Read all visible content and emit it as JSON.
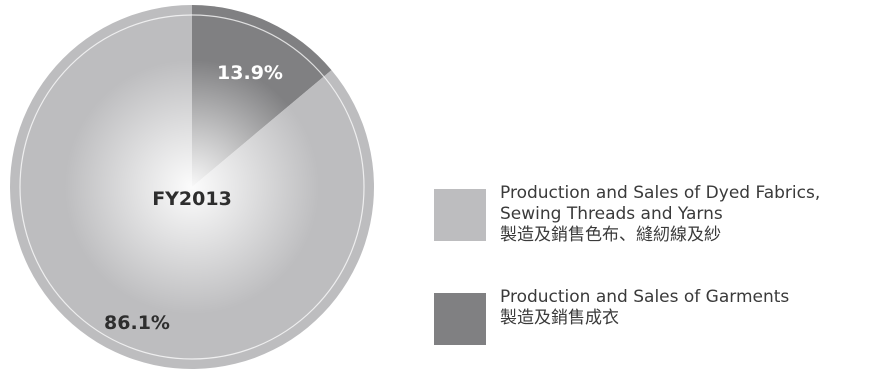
{
  "chart_data": {
    "type": "pie",
    "center_label": "FY2013",
    "slices": [
      {
        "value": 86.1,
        "value_label": "86.1%",
        "label_en": "Production and Sales of Dyed Fabrics, Sewing Threads and Yarns",
        "label_en_lines": [
          "Production and Sales of Dyed Fabrics,",
          "Sewing Threads and Yarns"
        ],
        "label_zh": "製造及銷售色布、縫紉線及紗",
        "color": "#bdbdbf"
      },
      {
        "value": 13.9,
        "value_label": "13.9%",
        "label_en": "Production and Sales of Garments",
        "label_en_lines": [
          "Production and Sales of Garments"
        ],
        "label_zh": "製造及銷售成衣",
        "color": "#808082"
      }
    ],
    "legend_position": "right"
  }
}
